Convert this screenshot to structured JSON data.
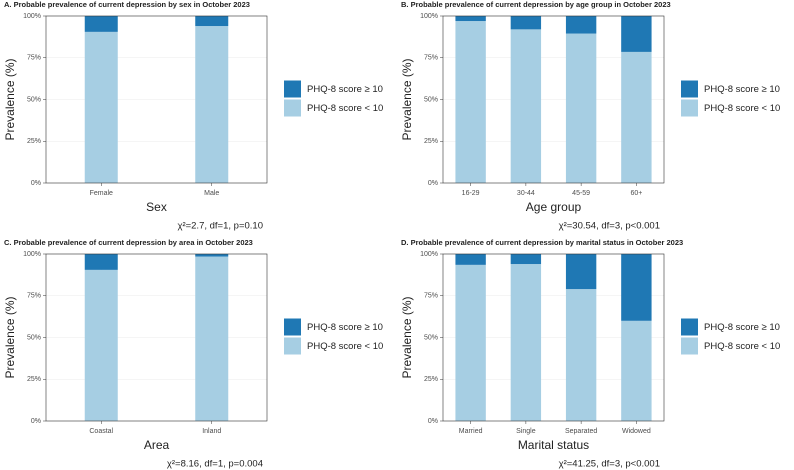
{
  "chart_data": [
    {
      "type": "bar",
      "stacked": true,
      "grid": true,
      "title": "A. Probable prevalence of current depression by sex in October 2023",
      "categories": [
        "Female",
        "Male"
      ],
      "series": [
        {
          "name": "PHQ-8 score < 10",
          "color": "#a6cee3",
          "values": [
            90.5,
            94
          ]
        },
        {
          "name": "PHQ-8 score ≥ 10",
          "color": "#1f78b4",
          "values": [
            9.5,
            6
          ]
        }
      ],
      "ylim": [
        0,
        100
      ],
      "yticks": [
        {
          "value": 0,
          "label": "0%"
        },
        {
          "value": 25,
          "label": "25%"
        },
        {
          "value": 50,
          "label": "50%"
        },
        {
          "value": 75,
          "label": "75%"
        },
        {
          "value": 100,
          "label": "100%"
        }
      ],
      "xlabel": "Sex",
      "ylabel": "Prevalence (%)",
      "annotation": "χ²=2.7, df=1, p=0.10"
    },
    {
      "type": "bar",
      "stacked": true,
      "grid": true,
      "title": "B. Probable prevalence of current depression by age group in October 2023",
      "categories": [
        "16-29",
        "30-44",
        "45-59",
        "60+"
      ],
      "series": [
        {
          "name": "PHQ-8 score < 10",
          "color": "#a6cee3",
          "values": [
            97,
            92,
            89.5,
            78.5
          ]
        },
        {
          "name": "PHQ-8 score ≥ 10",
          "color": "#1f78b4",
          "values": [
            3,
            8,
            10.5,
            21.5
          ]
        }
      ],
      "ylim": [
        0,
        100
      ],
      "yticks": [
        {
          "value": 0,
          "label": "0%"
        },
        {
          "value": 25,
          "label": "25%"
        },
        {
          "value": 50,
          "label": "50%"
        },
        {
          "value": 75,
          "label": "75%"
        },
        {
          "value": 100,
          "label": "100%"
        }
      ],
      "xlabel": "Age group",
      "ylabel": "Prevalence (%)",
      "annotation": "χ²=30.54, df=3, p<0.001"
    },
    {
      "type": "bar",
      "stacked": true,
      "grid": true,
      "title": "C. Probable prevalence of current depression by area in October 2023",
      "categories": [
        "Coastal",
        "Inland"
      ],
      "series": [
        {
          "name": "PHQ-8 score < 10",
          "color": "#a6cee3",
          "values": [
            90.5,
            98.5
          ]
        },
        {
          "name": "PHQ-8 score ≥ 10",
          "color": "#1f78b4",
          "values": [
            9.5,
            1.5
          ]
        }
      ],
      "ylim": [
        0,
        100
      ],
      "yticks": [
        {
          "value": 0,
          "label": "0%"
        },
        {
          "value": 25,
          "label": "25%"
        },
        {
          "value": 50,
          "label": "50%"
        },
        {
          "value": 75,
          "label": "75%"
        },
        {
          "value": 100,
          "label": "100%"
        }
      ],
      "xlabel": "Area",
      "ylabel": "Prevalence (%)",
      "annotation": "χ²=8.16, df=1, p=0.004"
    },
    {
      "type": "bar",
      "stacked": true,
      "grid": true,
      "title": "D. Probable prevalence of current depression by marital status in October 2023",
      "categories": [
        "Married",
        "Single",
        "Separated",
        "Widowed"
      ],
      "series": [
        {
          "name": "PHQ-8 score < 10",
          "color": "#a6cee3",
          "values": [
            93.5,
            94,
            79,
            60
          ]
        },
        {
          "name": "PHQ-8 score ≥ 10",
          "color": "#1f78b4",
          "values": [
            6.5,
            6,
            21,
            40
          ]
        }
      ],
      "ylim": [
        0,
        100
      ],
      "yticks": [
        {
          "value": 0,
          "label": "0%"
        },
        {
          "value": 25,
          "label": "25%"
        },
        {
          "value": 50,
          "label": "50%"
        },
        {
          "value": 75,
          "label": "75%"
        },
        {
          "value": 100,
          "label": "100%"
        }
      ],
      "xlabel": "Marital status",
      "ylabel": "Prevalence (%)",
      "annotation": "χ²=41.25, df=3, p<0.001"
    }
  ]
}
